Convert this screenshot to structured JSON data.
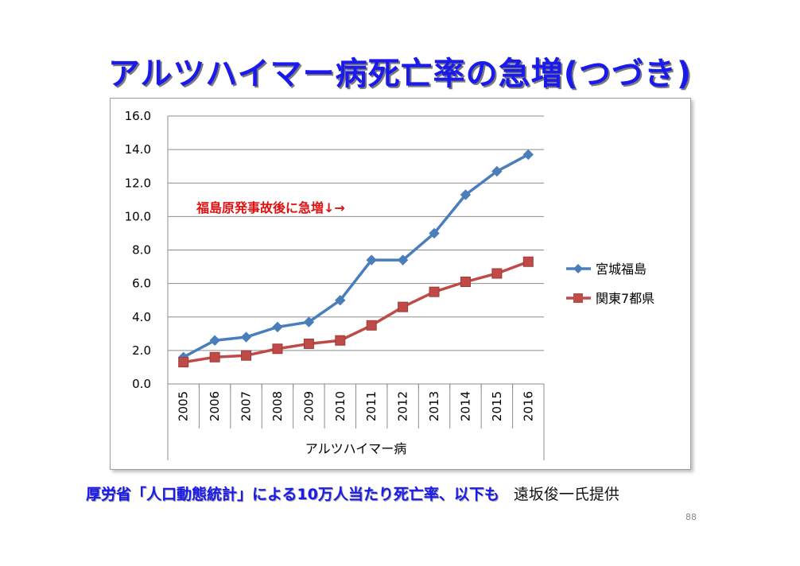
{
  "slide": {
    "title": "アルツハイマー病死亡率の急増(つづき)",
    "footer_main": "厚労省「人口動態統計」による10万人当たり死亡率、以下も",
    "footer_credit": "遠坂俊一氏提供",
    "page_number": "88"
  },
  "chart_data": {
    "type": "line",
    "title": "",
    "xlabel": "アルツハイマー病",
    "ylabel": "",
    "categories": [
      "2005",
      "2006",
      "2007",
      "2008",
      "2009",
      "2010",
      "2011",
      "2012",
      "2013",
      "2014",
      "2015",
      "2016"
    ],
    "ylim": [
      0,
      16
    ],
    "yticks": [
      "0.0",
      "2.0",
      "4.0",
      "6.0",
      "8.0",
      "10.0",
      "12.0",
      "14.0",
      "16.0"
    ],
    "grid": true,
    "legend_position": "right",
    "annotation": "福島原発事故後に急増↓→",
    "series": [
      {
        "name": "宮城福島",
        "marker": "diamond",
        "color": "#4a7ebb",
        "values": [
          1.6,
          2.6,
          2.8,
          3.4,
          3.7,
          5.0,
          7.4,
          7.4,
          9.0,
          11.3,
          12.7,
          13.7
        ]
      },
      {
        "name": "関東7都県",
        "marker": "square",
        "color": "#be4b48",
        "values": [
          1.3,
          1.6,
          1.7,
          2.1,
          2.4,
          2.6,
          3.5,
          4.6,
          5.5,
          6.1,
          6.6,
          7.3
        ]
      }
    ]
  }
}
